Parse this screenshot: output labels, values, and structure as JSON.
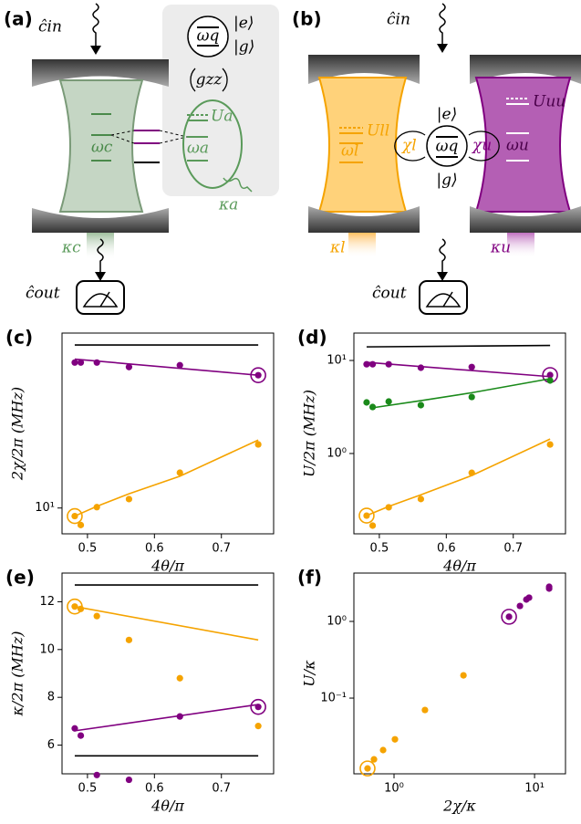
{
  "panels": [
    "(a)",
    "(b)"
  ],
  "schematic_a": {
    "c_in": "ĉin",
    "e": "|e⟩",
    "g": "|g⟩",
    "omega_q": "ωq",
    "g_zz": "gzz",
    "U_a": "Ua",
    "omega_c": "ωc",
    "omega_a": "ωa",
    "kappa_a": "κa",
    "kappa_c": "κc",
    "c_out": "ĉout"
  },
  "schematic_b": {
    "c_in": "ĉin",
    "U_ll": "Ull",
    "omega_l": "ωl",
    "chi_l": "χl",
    "e": "|e⟩",
    "omega_q": "ωq",
    "g": "|g⟩",
    "chi_u": "χu",
    "omega_u": "ωu",
    "U_uu": "Uuu",
    "kappa_l": "κl",
    "kappa_u": "κu",
    "c_out": "ĉout"
  },
  "chart_data": [
    {
      "type": "scatter",
      "panel_label": "(c)",
      "xlabel": "4θ/π",
      "ylabel": "2χ/2π (MHz)",
      "ylog": true,
      "xlim": [
        0.462,
        0.778
      ],
      "xticks": [
        0.5,
        0.6,
        0.7
      ],
      "ylim": [
        7.4,
        77
      ],
      "yticks": [
        {
          "value": 10,
          "label": "10¹"
        }
      ],
      "series": [
        {
          "style": "line",
          "color": "#000000",
          "x": [
            0.481,
            0.755
          ],
          "values": [
            67,
            67
          ]
        },
        {
          "style": "line",
          "color": "#800080",
          "x": [
            0.481,
            0.755
          ],
          "values": [
            56.8,
            47.1
          ]
        },
        {
          "style": "points",
          "color": "#800080",
          "x": [
            0.481,
            0.49,
            0.514,
            0.562,
            0.638,
            0.755
          ],
          "values": [
            54.6,
            54.6,
            54.6,
            51.8,
            52.9,
            47.1
          ],
          "highlight": 5
        },
        {
          "style": "line",
          "color": "#f5a300",
          "x": [
            0.481,
            0.514,
            0.562,
            0.638,
            0.755
          ],
          "values": [
            9.1,
            10.2,
            11.8,
            14.5,
            22.1
          ]
        },
        {
          "style": "points",
          "color": "#f5a300",
          "x": [
            0.481,
            0.49,
            0.514,
            0.562,
            0.638,
            0.755
          ],
          "values": [
            9.1,
            8.2,
            10.1,
            11.1,
            15.1,
            21.0
          ],
          "highlight": 0
        }
      ]
    },
    {
      "type": "scatter",
      "panel_label": "(d)",
      "xlabel": "4θ/π",
      "ylabel": "U/2π (MHz)",
      "ylog": true,
      "xlim": [
        0.462,
        0.778
      ],
      "xticks": [
        0.5,
        0.6,
        0.7
      ],
      "ylim": [
        0.137,
        19.7
      ],
      "yticks": [
        {
          "value": 1,
          "label": "10⁰"
        },
        {
          "value": 10,
          "label": "10¹"
        }
      ],
      "series": [
        {
          "style": "line",
          "color": "#000000",
          "x": [
            0.481,
            0.755
          ],
          "values": [
            14.0,
            14.5
          ]
        },
        {
          "style": "line",
          "color": "#800080",
          "x": [
            0.481,
            0.755
          ],
          "values": [
            9.56,
            6.7
          ]
        },
        {
          "style": "points",
          "color": "#800080",
          "x": [
            0.481,
            0.49,
            0.514,
            0.562,
            0.638,
            0.755
          ],
          "values": [
            9.1,
            9.1,
            9.1,
            8.35,
            8.5,
            6.97
          ],
          "highlight": 5
        },
        {
          "style": "line",
          "color": "#1a8a1a",
          "x": [
            0.49,
            0.562,
            0.638,
            0.755
          ],
          "values": [
            3.1,
            3.7,
            4.5,
            6.37
          ]
        },
        {
          "style": "points",
          "color": "#1a8a1a",
          "x": [
            0.481,
            0.49,
            0.514,
            0.562,
            0.638,
            0.755
          ],
          "values": [
            3.54,
            3.16,
            3.62,
            3.31,
            4.05,
            6.09
          ]
        },
        {
          "style": "line",
          "color": "#f5a300",
          "x": [
            0.481,
            0.514,
            0.562,
            0.638,
            0.755
          ],
          "values": [
            0.215,
            0.27,
            0.36,
            0.58,
            1.43
          ]
        },
        {
          "style": "points",
          "color": "#f5a300",
          "x": [
            0.481,
            0.49,
            0.514,
            0.562,
            0.638,
            0.755
          ],
          "values": [
            0.215,
            0.168,
            0.264,
            0.324,
            0.62,
            1.25
          ],
          "highlight": 0
        }
      ]
    },
    {
      "type": "scatter",
      "panel_label": "(e)",
      "xlabel": "4θ/π",
      "ylabel": "κ/2π (MHz)",
      "xlim": [
        0.462,
        0.778
      ],
      "xticks": [
        0.5,
        0.6,
        0.7
      ],
      "ylim": [
        4.8,
        13.2
      ],
      "yticks": [
        6,
        8,
        10,
        12
      ],
      "series": [
        {
          "style": "line",
          "color": "#000000",
          "x": [
            0.481,
            0.755
          ],
          "values": [
            12.7,
            12.7
          ]
        },
        {
          "style": "line",
          "color": "#000000",
          "x": [
            0.481,
            0.755
          ],
          "values": [
            5.55,
            5.55
          ]
        },
        {
          "style": "line",
          "color": "#f5a300",
          "x": [
            0.481,
            0.755
          ],
          "values": [
            11.8,
            10.4
          ]
        },
        {
          "style": "points",
          "color": "#f5a300",
          "x": [
            0.481,
            0.49,
            0.514,
            0.562,
            0.638,
            0.755
          ],
          "values": [
            11.8,
            11.7,
            11.4,
            10.4,
            8.8,
            6.8
          ],
          "highlight": 0
        },
        {
          "style": "line",
          "color": "#800080",
          "x": [
            0.481,
            0.755
          ],
          "values": [
            6.6,
            7.7
          ]
        },
        {
          "style": "points",
          "color": "#800080",
          "x": [
            0.481,
            0.49,
            0.514,
            0.562,
            0.638,
            0.755
          ],
          "values": [
            6.7,
            6.4,
            4.75,
            4.55,
            7.2,
            7.6
          ],
          "highlight": 5
        }
      ]
    },
    {
      "type": "scatter",
      "panel_label": "(f)",
      "xlabel": "2χ/κ",
      "ylabel": "U/κ",
      "xlog": true,
      "ylog": true,
      "xlim": [
        0.518,
        16.6
      ],
      "xticks": [
        {
          "value": 1,
          "label": "10⁰"
        },
        {
          "value": 10,
          "label": "10¹"
        }
      ],
      "ylim": [
        0.0103,
        4.27
      ],
      "yticks": [
        {
          "value": 0.1,
          "label": "10⁻¹"
        },
        {
          "value": 1,
          "label": "10⁰"
        }
      ],
      "series": [
        {
          "style": "points",
          "color": "#f5a300",
          "x": [
            0.648,
            0.72,
            0.836,
            1.015,
            1.66,
            3.12
          ],
          "values": [
            0.0121,
            0.0159,
            0.021,
            0.029,
            0.07,
            0.198
          ],
          "highlight": 0
        },
        {
          "style": "points",
          "color": "#800080",
          "x": [
            6.58,
            7.87,
            8.74,
            9.14,
            12.7,
            12.7
          ],
          "values": [
            1.15,
            1.59,
            1.93,
            2.04,
            2.68,
            2.83
          ],
          "highlight": 0
        }
      ]
    }
  ]
}
